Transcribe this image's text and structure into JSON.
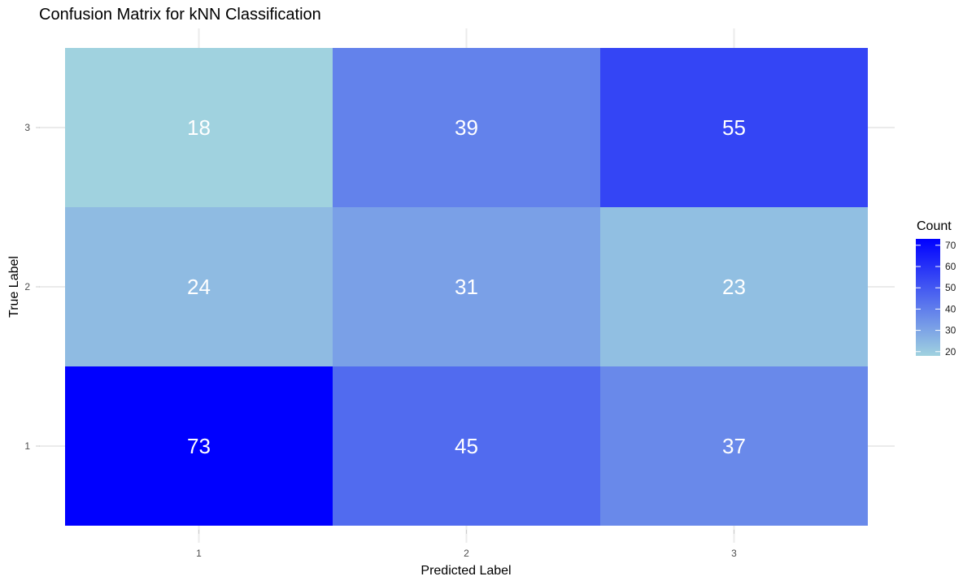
{
  "chart_data": {
    "type": "heatmap",
    "title": "Confusion Matrix for kNN Classification",
    "xlabel": "Predicted Label",
    "ylabel": "True Label",
    "x_categories": [
      "1",
      "2",
      "3"
    ],
    "y_categories": [
      "1",
      "2",
      "3"
    ],
    "values": [
      {
        "true": "1",
        "predicted": "1",
        "count": 73
      },
      {
        "true": "1",
        "predicted": "2",
        "count": 45
      },
      {
        "true": "1",
        "predicted": "3",
        "count": 37
      },
      {
        "true": "2",
        "predicted": "1",
        "count": 24
      },
      {
        "true": "2",
        "predicted": "2",
        "count": 31
      },
      {
        "true": "2",
        "predicted": "3",
        "count": 23
      },
      {
        "true": "3",
        "predicted": "1",
        "count": 18
      },
      {
        "true": "3",
        "predicted": "2",
        "count": 39
      },
      {
        "true": "3",
        "predicted": "3",
        "count": 55
      }
    ],
    "legend": {
      "title": "Count",
      "ticks": [
        20,
        30,
        40,
        50,
        60,
        70
      ],
      "range": [
        18,
        73
      ],
      "low_color": "#a0d2df",
      "high_color": "#0000ff",
      "placement": "right"
    },
    "grid": true
  }
}
